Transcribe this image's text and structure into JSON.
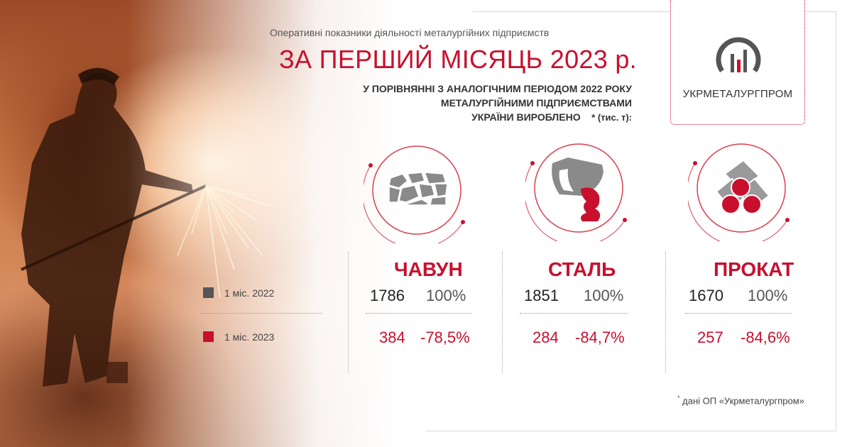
{
  "header": {
    "subtitle": "Оперативні показники діяльності металургійних підприємств",
    "title": "ЗА ПЕРШИЙ МІСЯЦЬ 2023 р.",
    "compare_line1": "У ПОРІВНЯННІ З АНАЛОГІЧНИМ ПЕРІОДОМ 2022 РОКУ",
    "compare_line2": "МЕТАЛУРГІЙНИМИ ПІДПРИЄМСТВАМИ",
    "compare_line3": "УКРАЇНИ ВИРОБЛЕНО",
    "unit_note": "* (тис. т):"
  },
  "logo": {
    "name": "УКРМЕТАЛУРГПРОМ"
  },
  "legend": {
    "prev_label": "1 міс. 2022",
    "curr_label": "1 міс. 2023",
    "prev_color": "#555555",
    "curr_color": "#c8102e"
  },
  "products": [
    {
      "name": "ЧАВУН",
      "icon": "iron-ore-icon",
      "prev_value": "1786",
      "prev_pct": "100%",
      "curr_value": "384",
      "curr_pct": "-78,5%"
    },
    {
      "name": "СТАЛЬ",
      "icon": "ladle-pour-icon",
      "prev_value": "1851",
      "prev_pct": "100%",
      "curr_value": "284",
      "curr_pct": "-84,7%"
    },
    {
      "name": "ПРОКАТ",
      "icon": "pipes-icon",
      "prev_value": "1670",
      "prev_pct": "100%",
      "curr_value": "257",
      "curr_pct": "-84,6%"
    }
  ],
  "footnote": {
    "mark": "*",
    "text": "дані ОП «Укрметалургпром»"
  },
  "colors": {
    "accent": "#c8102e",
    "text": "#333333"
  }
}
